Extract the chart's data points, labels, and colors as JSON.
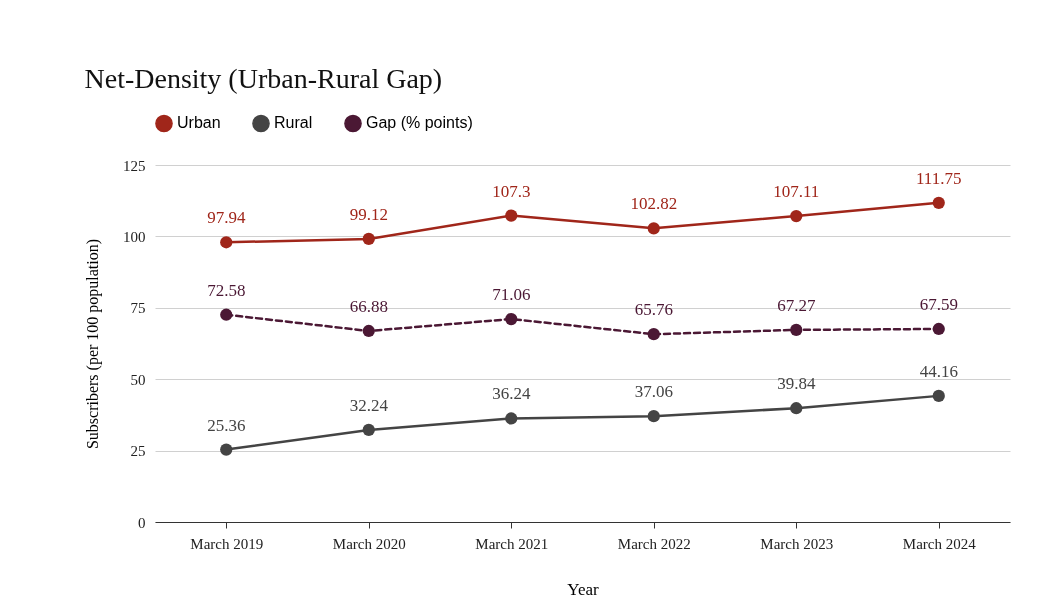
{
  "chart_data": {
    "type": "line",
    "title": "Net-Density (Urban-Rural Gap)",
    "xlabel": "Year",
    "ylabel": "Subscribers (per 100 population)",
    "categories": [
      "March 2019",
      "March 2020",
      "March 2021",
      "March 2022",
      "March 2023",
      "March 2024"
    ],
    "series": [
      {
        "name": "Urban",
        "color": "#a0261a",
        "values": [
          97.94,
          99.12,
          107.3,
          102.82,
          107.11,
          111.75
        ]
      },
      {
        "name": "Rural",
        "color": "#444444",
        "values": [
          25.36,
          32.24,
          36.24,
          37.06,
          39.84,
          44.16
        ]
      },
      {
        "name": "Gap (% points)",
        "color": "#4b1834",
        "line_style": "dashed",
        "values": [
          72.58,
          66.88,
          71.06,
          65.76,
          67.27,
          67.59
        ]
      }
    ],
    "ylim": [
      0,
      125
    ],
    "yticks": [
      0,
      25,
      50,
      75,
      100,
      125
    ],
    "grid": "y",
    "legend": "top",
    "marker": "circle",
    "data_labels": true
  }
}
